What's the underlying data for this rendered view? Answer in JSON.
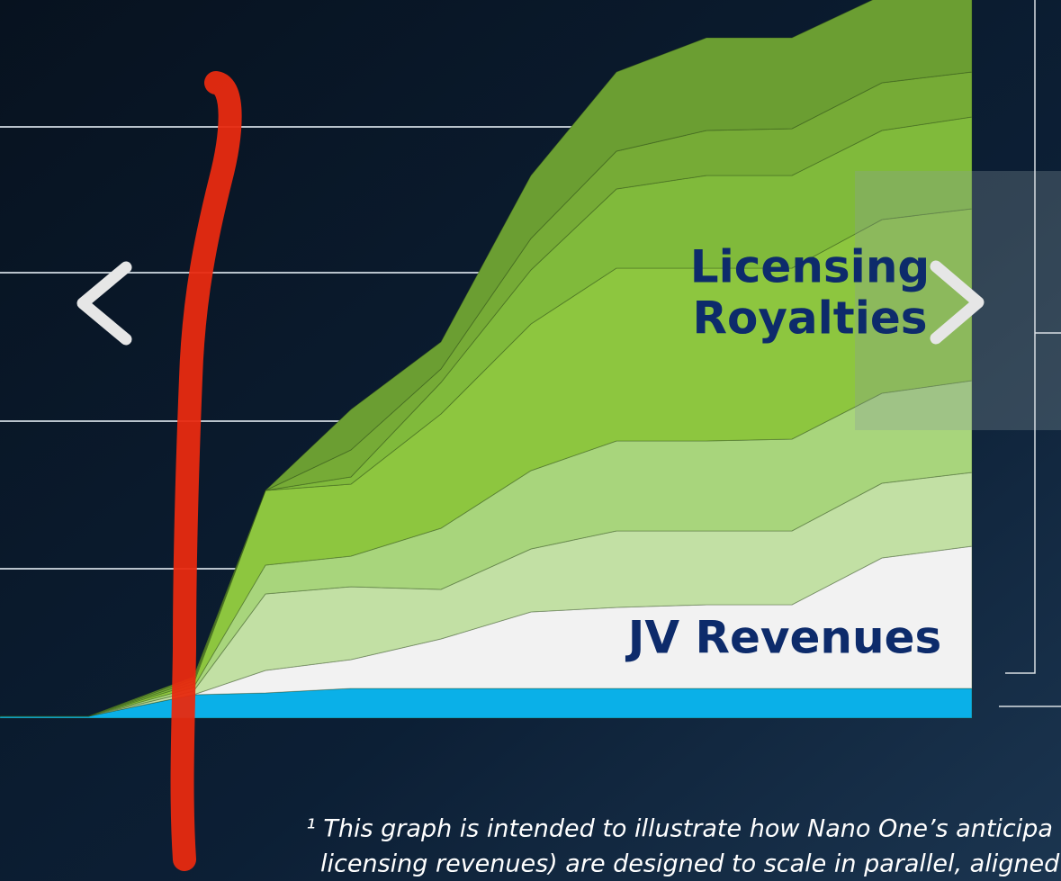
{
  "chart_data": {
    "type": "area",
    "stacked": true,
    "x": [
      0,
      98,
      215,
      295,
      390,
      490,
      590,
      685,
      785,
      880,
      980,
      1080
    ],
    "xlim": [
      0,
      1080
    ],
    "ylim": [
      0,
      800
    ],
    "series": [
      {
        "color": "#0ab0e8",
        "values": [
          2,
          2,
          26,
          28,
          33,
          33,
          33,
          33,
          33,
          33,
          33,
          33
        ]
      },
      {
        "color": "#f2f2f2",
        "values": [
          0,
          0,
          0,
          25,
          32,
          55,
          85,
          90,
          93,
          93,
          145,
          158
        ]
      },
      {
        "color": "#c2e0a4",
        "values": [
          0,
          0,
          4,
          85,
          81,
          55,
          70,
          85,
          82,
          82,
          83,
          82
        ]
      },
      {
        "color": "#a8d57c",
        "values": [
          0,
          0,
          4,
          32,
          34,
          68,
          87,
          100,
          100,
          102,
          100,
          102
        ]
      },
      {
        "color": "#8dc63f",
        "values": [
          0,
          0,
          4,
          83,
          80,
          127,
          163,
          192,
          192,
          190,
          193,
          191
        ]
      },
      {
        "color": "#80ba3b",
        "values": [
          0,
          0,
          3,
          0,
          8,
          35,
          60,
          88,
          103,
          103,
          99,
          102
        ]
      },
      {
        "color": "#76ab36",
        "values": [
          0,
          0,
          3,
          0,
          30,
          15,
          35,
          42,
          50,
          52,
          53,
          50
        ]
      },
      {
        "color": "#6b9e32",
        "values": [
          0,
          0,
          2,
          0,
          45,
          30,
          70,
          88,
          103,
          101,
          97,
          85
        ]
      }
    ],
    "annotations": [
      {
        "lines": [
          "Licensing",
          "Royalties"
        ]
      },
      {
        "lines": [
          "JV Revenues"
        ]
      }
    ],
    "annotation_color": "#0d2b6b"
  },
  "footnote": [
    "¹ This graph is intended to illustrate how Nano One’s anticipa",
    "licensing revenues) are designed to scale in parallel, aligned"
  ]
}
